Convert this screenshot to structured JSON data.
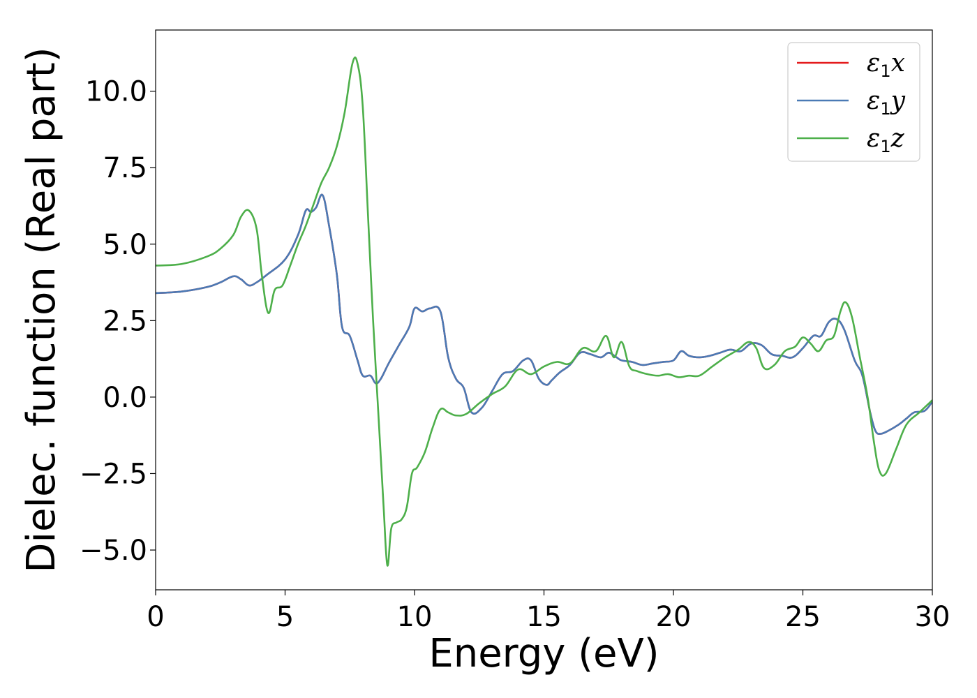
{
  "chart_data": {
    "type": "line",
    "title": "",
    "xlabel": "Energy (eV)",
    "ylabel": "Dielec. function (Real part)",
    "xlim": [
      0,
      30
    ],
    "ylim": [
      -6.3,
      12.0
    ],
    "xticks": [
      0,
      5,
      10,
      15,
      20,
      25,
      30
    ],
    "xtick_labels": [
      "0",
      "5",
      "10",
      "15",
      "20",
      "25",
      "30"
    ],
    "yticks": [
      -5.0,
      -2.5,
      0.0,
      2.5,
      5.0,
      7.5,
      10.0
    ],
    "ytick_labels": [
      "−5.0",
      "−2.5",
      "0.0",
      "2.5",
      "5.0",
      "7.5",
      "10.0"
    ],
    "grid": false,
    "legend_position": "top-right",
    "series": [
      {
        "name": "ε₁x",
        "legend": {
          "base": "ε",
          "sub": "1",
          "suffix": "x"
        },
        "color": "#e41a1c",
        "x": [
          0,
          1,
          2,
          2.5,
          3,
          3.3,
          3.6,
          3.9,
          4.3,
          5,
          5.5,
          5.8,
          6,
          6.2,
          6.45,
          6.7,
          7,
          7.2,
          7.5,
          7.8,
          8,
          8.3,
          8.5,
          8.7,
          9,
          9.4,
          9.8,
          10,
          10.3,
          10.6,
          11,
          11.3,
          11.6,
          11.9,
          12.2,
          12.6,
          13,
          13.4,
          13.8,
          14.2,
          14.5,
          14.8,
          15.1,
          15.3,
          15.6,
          16,
          16.4,
          16.8,
          17.2,
          17.5,
          17.8,
          18,
          18.4,
          18.8,
          19.2,
          19.6,
          20,
          20.3,
          20.6,
          21,
          21.4,
          21.8,
          22.2,
          22.6,
          23,
          23.4,
          23.8,
          24.2,
          24.6,
          25,
          25.4,
          25.7,
          26,
          26.3,
          26.6,
          27,
          27.3,
          27.6,
          27.8,
          28,
          28.3,
          28.7,
          29,
          29.3,
          29.7,
          30
        ],
        "y": [
          3.4,
          3.45,
          3.6,
          3.75,
          3.95,
          3.85,
          3.65,
          3.75,
          4.0,
          4.5,
          5.3,
          6.1,
          6.05,
          6.2,
          6.6,
          5.6,
          4.0,
          2.3,
          2.0,
          1.2,
          0.7,
          0.7,
          0.45,
          0.6,
          1.1,
          1.7,
          2.3,
          2.9,
          2.8,
          2.9,
          2.8,
          1.3,
          0.6,
          0.3,
          -0.5,
          -0.35,
          0.2,
          0.75,
          0.85,
          1.2,
          1.2,
          0.6,
          0.4,
          0.55,
          0.8,
          1.05,
          1.45,
          1.4,
          1.3,
          1.45,
          1.3,
          1.2,
          1.15,
          1.05,
          1.1,
          1.15,
          1.2,
          1.5,
          1.35,
          1.3,
          1.35,
          1.45,
          1.55,
          1.5,
          1.75,
          1.7,
          1.4,
          1.35,
          1.3,
          1.6,
          2.0,
          2.0,
          2.45,
          2.55,
          2.2,
          1.2,
          0.7,
          -0.5,
          -1.1,
          -1.2,
          -1.1,
          -0.9,
          -0.7,
          -0.5,
          -0.45,
          -0.15
        ]
      },
      {
        "name": "ε₁y",
        "legend": {
          "base": "ε",
          "sub": "1",
          "suffix": "y"
        },
        "color": "#4a7ab5",
        "x": [
          0,
          1,
          2,
          2.5,
          3,
          3.3,
          3.6,
          3.9,
          4.3,
          5,
          5.5,
          5.8,
          6,
          6.2,
          6.45,
          6.7,
          7,
          7.2,
          7.5,
          7.8,
          8,
          8.3,
          8.5,
          8.7,
          9,
          9.4,
          9.8,
          10,
          10.3,
          10.6,
          11,
          11.3,
          11.6,
          11.9,
          12.2,
          12.6,
          13,
          13.4,
          13.8,
          14.2,
          14.5,
          14.8,
          15.1,
          15.3,
          15.6,
          16,
          16.4,
          16.8,
          17.2,
          17.5,
          17.8,
          18,
          18.4,
          18.8,
          19.2,
          19.6,
          20,
          20.3,
          20.6,
          21,
          21.4,
          21.8,
          22.2,
          22.6,
          23,
          23.4,
          23.8,
          24.2,
          24.6,
          25,
          25.4,
          25.7,
          26,
          26.3,
          26.6,
          27,
          27.3,
          27.6,
          27.8,
          28,
          28.3,
          28.7,
          29,
          29.3,
          29.7,
          30
        ],
        "y": [
          3.4,
          3.45,
          3.6,
          3.75,
          3.95,
          3.85,
          3.65,
          3.75,
          4.0,
          4.5,
          5.3,
          6.1,
          6.05,
          6.2,
          6.6,
          5.6,
          4.0,
          2.3,
          2.0,
          1.2,
          0.7,
          0.7,
          0.45,
          0.6,
          1.1,
          1.7,
          2.3,
          2.9,
          2.8,
          2.9,
          2.8,
          1.3,
          0.6,
          0.3,
          -0.5,
          -0.35,
          0.2,
          0.75,
          0.85,
          1.2,
          1.2,
          0.6,
          0.4,
          0.55,
          0.8,
          1.05,
          1.45,
          1.4,
          1.3,
          1.45,
          1.3,
          1.2,
          1.15,
          1.05,
          1.1,
          1.15,
          1.2,
          1.5,
          1.35,
          1.3,
          1.35,
          1.45,
          1.55,
          1.5,
          1.75,
          1.7,
          1.4,
          1.35,
          1.3,
          1.6,
          2.0,
          2.0,
          2.45,
          2.55,
          2.2,
          1.2,
          0.7,
          -0.5,
          -1.1,
          -1.2,
          -1.1,
          -0.9,
          -0.7,
          -0.5,
          -0.45,
          -0.15
        ]
      },
      {
        "name": "ε₁z",
        "legend": {
          "base": "ε",
          "sub": "1",
          "suffix": "z"
        },
        "color": "#4daf4a",
        "x": [
          0,
          1,
          2,
          2.5,
          3,
          3.3,
          3.6,
          3.9,
          4.1,
          4.35,
          4.6,
          4.9,
          5.2,
          5.5,
          5.8,
          6.1,
          6.4,
          6.7,
          7,
          7.3,
          7.6,
          7.8,
          8,
          8.2,
          8.4,
          8.6,
          8.8,
          8.95,
          9.1,
          9.3,
          9.5,
          9.7,
          9.9,
          10.1,
          10.4,
          10.7,
          11,
          11.3,
          11.6,
          12,
          12.5,
          13,
          13.5,
          14,
          14.5,
          15,
          15.5,
          16,
          16.5,
          17,
          17.4,
          17.7,
          18,
          18.3,
          18.6,
          19,
          19.4,
          19.8,
          20.2,
          20.6,
          21,
          21.5,
          22,
          22.5,
          22.9,
          23.2,
          23.5,
          23.9,
          24.3,
          24.7,
          25,
          25.3,
          25.6,
          25.9,
          26.2,
          26.45,
          26.65,
          26.9,
          27.2,
          27.5,
          27.75,
          27.95,
          28.2,
          28.6,
          29,
          29.5,
          30
        ],
        "y": [
          4.3,
          4.35,
          4.6,
          4.85,
          5.3,
          5.9,
          6.1,
          5.5,
          4.0,
          2.75,
          3.5,
          3.65,
          4.3,
          5.0,
          5.6,
          6.3,
          7.0,
          7.5,
          8.2,
          9.3,
          10.9,
          10.9,
          9.5,
          6.0,
          2.5,
          -0.5,
          -3.5,
          -5.5,
          -4.3,
          -4.1,
          -4.0,
          -3.6,
          -2.5,
          -2.3,
          -1.8,
          -1.0,
          -0.4,
          -0.5,
          -0.6,
          -0.55,
          -0.2,
          0.1,
          0.35,
          0.9,
          0.75,
          1.0,
          1.15,
          1.1,
          1.6,
          1.5,
          2.0,
          1.3,
          1.8,
          1.0,
          0.85,
          0.75,
          0.7,
          0.75,
          0.65,
          0.7,
          0.7,
          1.0,
          1.3,
          1.55,
          1.8,
          1.6,
          0.95,
          1.05,
          1.5,
          1.65,
          1.95,
          1.75,
          1.5,
          1.85,
          2.0,
          2.8,
          3.1,
          2.6,
          1.3,
          0.0,
          -1.5,
          -2.4,
          -2.5,
          -1.7,
          -0.9,
          -0.5,
          -0.1
        ]
      }
    ]
  }
}
